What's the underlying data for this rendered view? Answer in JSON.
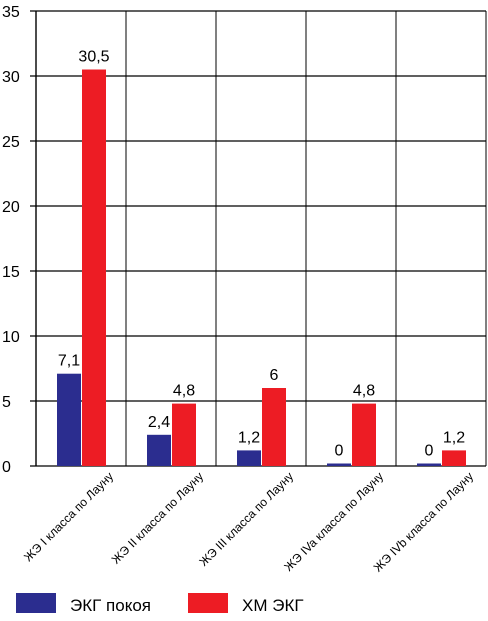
{
  "chart_data": {
    "type": "bar",
    "title": "",
    "xlabel": "",
    "ylabel": "",
    "categories": [
      "ЖЭ I класса по Лауну",
      "ЖЭ II класса по Лауну",
      "ЖЭ III класса по Лауну",
      "ЖЭ IVa класса по Лауну",
      "ЖЭ IVb класса по Лауну"
    ],
    "series": [
      {
        "name": "ЭКГ  покоя",
        "color": "#2b2d8f",
        "values": [
          7.1,
          2.4,
          1.2,
          0,
          0
        ],
        "labels": [
          "7,1",
          "2,4",
          "1,2",
          "0",
          "0"
        ]
      },
      {
        "name": "ХМ ЭКГ",
        "color": "#ed1c24",
        "values": [
          30.5,
          4.8,
          6,
          4.8,
          1.2
        ],
        "labels": [
          "30,5",
          "4,8",
          "6",
          "4,8",
          "1,2"
        ]
      }
    ],
    "ylim": [
      0,
      35
    ],
    "yticks": [
      0,
      5,
      10,
      15,
      20,
      25,
      30,
      35
    ],
    "grid": true,
    "legend": "bottom"
  }
}
